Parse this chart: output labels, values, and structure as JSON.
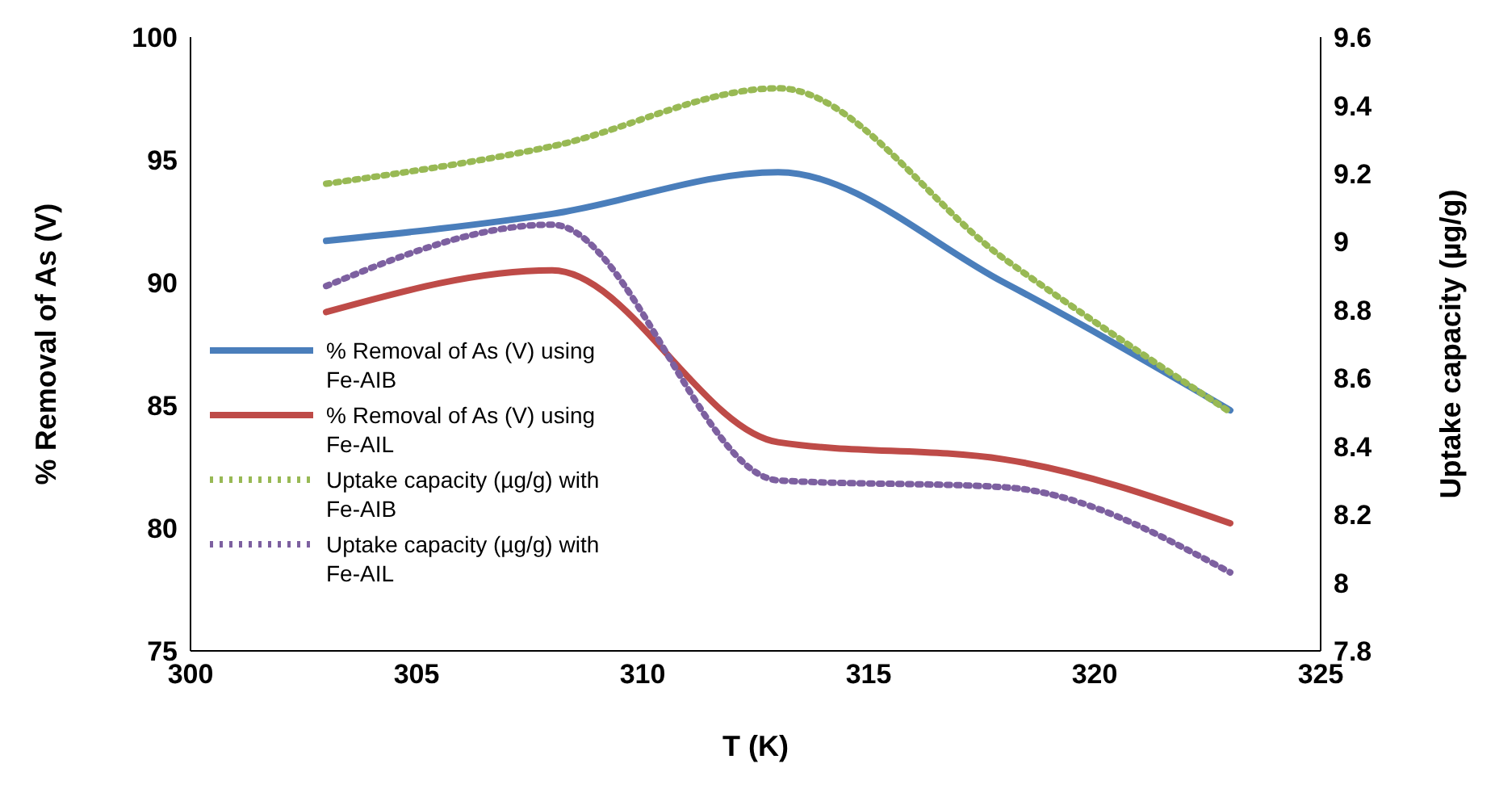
{
  "chart_data": {
    "type": "line",
    "xlabel": "T (K)",
    "ylabel": "% Removal of As (V)",
    "y2label": "Uptake capacity (µg/g)",
    "x": [
      303,
      308,
      313,
      318,
      323
    ],
    "series": [
      {
        "name": "% Removal of As (V) using Fe-AIB",
        "color": "#4a7ebb",
        "values": [
          91.7,
          92.8,
          94.5,
          90.0,
          84.8
        ],
        "line_style": "solid"
      },
      {
        "name": "% Removal of As (V) using Fe-AIL",
        "color": "#be4b48",
        "values": [
          88.8,
          90.5,
          83.5,
          82.8,
          80.2
        ],
        "line_style": "solid"
      },
      {
        "name": "Uptake capacity (µg/g) with Fe-AIB",
        "color": "#98b954",
        "values": [
          9.17,
          9.28,
          9.45,
          8.95,
          8.5
        ],
        "line_style": "dotted",
        "axis": "y2"
      },
      {
        "name": "Uptake capacity (µg/g) with Fe-AIL",
        "color": "#7d60a0",
        "values": [
          8.87,
          9.05,
          8.3,
          8.28,
          8.03
        ],
        "line_style": "dotted",
        "axis": "y2"
      }
    ],
    "xlim": [
      300,
      325
    ],
    "xticks": [
      300,
      305,
      310,
      315,
      320,
      325
    ],
    "ylim": [
      75,
      100
    ],
    "yticks": [
      75,
      80,
      85,
      90,
      95,
      100
    ],
    "y2lim": [
      7.8,
      9.6
    ],
    "y2ticks": [
      7.8,
      8,
      8.2,
      8.4,
      8.6,
      8.8,
      9,
      9.2,
      9.4,
      9.6
    ],
    "grid": false,
    "legend": "left",
    "marker": "none"
  }
}
